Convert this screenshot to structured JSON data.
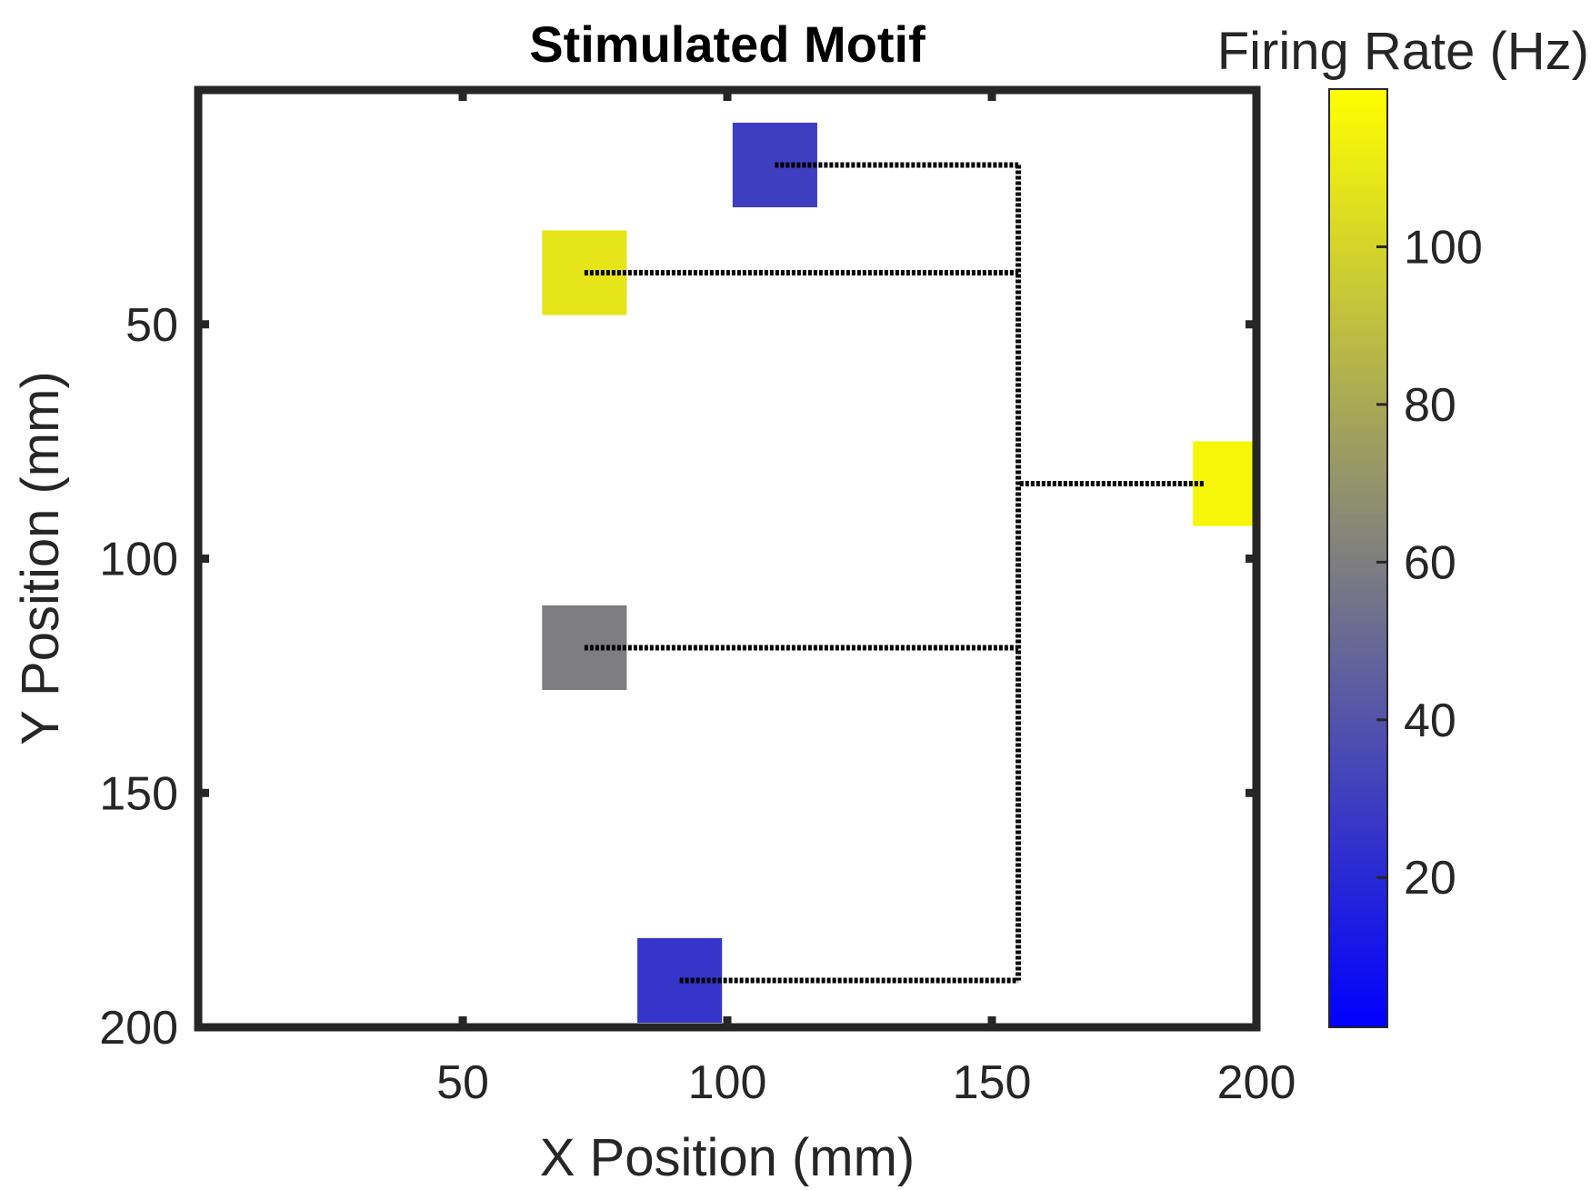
{
  "chart_data": {
    "type": "scatter",
    "title": "Stimulated Motif",
    "xlabel": "X Position (mm)",
    "ylabel": "Y Position (mm)",
    "xlim": [
      0,
      200
    ],
    "ylim": [
      0,
      200
    ],
    "y_reversed": true,
    "x_ticks": [
      50,
      100,
      150,
      200
    ],
    "y_ticks": [
      50,
      100,
      150,
      200
    ],
    "grid": false,
    "colorbar": {
      "label": "Firing Rate (Hz)",
      "range": [
        1,
        120
      ],
      "ticks": [
        20,
        40,
        60,
        80,
        100
      ],
      "colormap_stops": [
        "#0000ff",
        "#7f7f7f",
        "#ffff00"
      ]
    },
    "neurons": [
      {
        "x": 109,
        "y": 16,
        "rate": 30
      },
      {
        "x": 73,
        "y": 39,
        "rate": 108
      },
      {
        "x": 73,
        "y": 119,
        "rate": 60
      },
      {
        "x": 91,
        "y": 190,
        "rate": 26
      },
      {
        "x": 196,
        "y": 84,
        "rate": 116
      }
    ],
    "connections": {
      "trunk_x": 155,
      "trunk_y_range": [
        16,
        190
      ],
      "branches": [
        {
          "from_x": 109,
          "y": 16
        },
        {
          "from_x": 73,
          "y": 39
        },
        {
          "from_x": 73,
          "y": 119
        },
        {
          "from_x": 91,
          "y": 190
        },
        {
          "from_x": 190,
          "y": 84
        }
      ]
    }
  }
}
